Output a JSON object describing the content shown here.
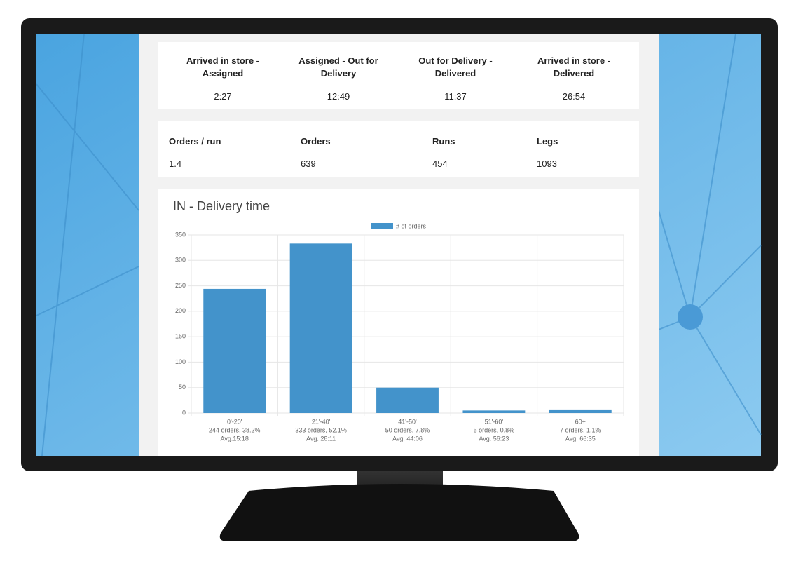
{
  "metrics": [
    {
      "label": "Arrived in store - Assigned",
      "value": "2:27"
    },
    {
      "label": "Assigned - Out for Delivery",
      "value": "12:49"
    },
    {
      "label": "Out for Delivery - Delivered",
      "value": "11:37"
    },
    {
      "label": "Arrived in store - Delivered",
      "value": "26:54"
    }
  ],
  "stats": [
    {
      "label": "Orders / run",
      "value": 1.4
    },
    {
      "label": "Orders",
      "value": 639
    },
    {
      "label": "Runs",
      "value": 454
    },
    {
      "label": "Legs",
      "value": 1093
    }
  ],
  "chart_data": {
    "type": "bar",
    "title": "IN - Delivery time",
    "categories": [
      "0'-20'",
      "21'-40'",
      "41'-50'",
      "51'-60'",
      "60+"
    ],
    "category_details": [
      [
        "244 orders, 38.2%",
        "Avg.15:18"
      ],
      [
        "333 orders, 52.1%",
        "Avg. 28:11"
      ],
      [
        "50 orders, 7.8%",
        "Avg. 44:06"
      ],
      [
        "5 orders, 0.8%",
        "Avg. 56:23"
      ],
      [
        "7 orders, 1.1%",
        "Avg. 66:35"
      ]
    ],
    "series": [
      {
        "name": "# of orders",
        "color": "#4393cb",
        "values": [
          244,
          333,
          50,
          5,
          7
        ]
      }
    ],
    "ylim": [
      0,
      350
    ],
    "yticks": [
      0,
      50,
      100,
      150,
      200,
      250,
      300,
      350
    ],
    "grid": true,
    "legend": "top"
  }
}
